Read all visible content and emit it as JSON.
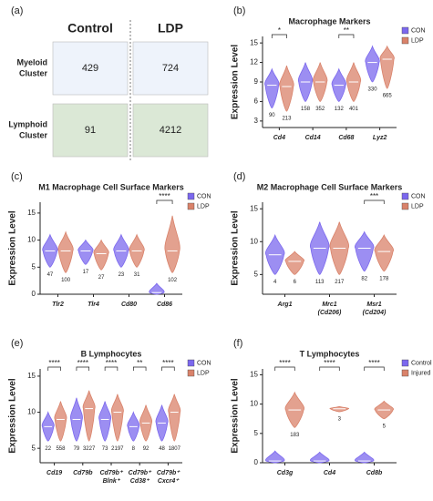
{
  "chart_data": [
    {
      "type": "matrix",
      "panel_label": "(a)",
      "columns": [
        "Control",
        "LDP"
      ],
      "rows": [
        [
          "Myeloid",
          "Cluster"
        ],
        [
          "Lymphoid",
          "Cluster"
        ]
      ],
      "row_colors": [
        "#eef3fb",
        "#dbe8d6"
      ],
      "values": [
        [
          429,
          724
        ],
        [
          91,
          4212
        ]
      ]
    },
    {
      "type": "violin",
      "panel_label": "(b)",
      "title": "Macrophage Markers",
      "ylabel": "Expression Level",
      "categories": [
        [
          "Cd4"
        ],
        [
          "Cd14"
        ],
        [
          "Cd68"
        ],
        [
          "Lyz2"
        ]
      ],
      "ylim": [
        2,
        16
      ],
      "yticks": [
        3,
        6,
        9,
        12,
        15
      ],
      "significance": [
        "*",
        null,
        "**",
        null
      ],
      "series": [
        {
          "name": "CON",
          "color": "#7b68ee",
          "values": [
            8.5,
            9,
            8.5,
            12
          ],
          "mins": [
            5,
            6,
            6,
            9
          ],
          "maxs": [
            11,
            12,
            11,
            14.5
          ],
          "counts": [
            90,
            158,
            132,
            330
          ]
        },
        {
          "name": "LDP",
          "color": "#d9826a",
          "values": [
            8.3,
            9,
            9,
            12.5
          ],
          "mins": [
            4.5,
            6,
            6,
            8
          ],
          "maxs": [
            11.5,
            12,
            12,
            14.5
          ],
          "counts": [
            213,
            352,
            401,
            665
          ]
        }
      ]
    },
    {
      "type": "violin",
      "panel_label": "(c)",
      "title": "M1 Macrophage Cell Surface Markers",
      "ylabel": "Expression Level",
      "categories": [
        [
          "Tlr2"
        ],
        [
          "Tlr4"
        ],
        [
          "Cd80"
        ],
        [
          "Cd86"
        ]
      ],
      "ylim": [
        0,
        17
      ],
      "yticks": [
        0,
        5,
        10,
        15
      ],
      "significance": [
        null,
        null,
        null,
        "****"
      ],
      "series": [
        {
          "name": "CON",
          "color": "#7b68ee",
          "values": [
            8,
            8,
            8,
            0.3
          ],
          "mins": [
            5,
            5.5,
            5,
            0
          ],
          "maxs": [
            11,
            10,
            11,
            2
          ]
        },
        {
          "name": "LDP",
          "color": "#d9826a",
          "values": [
            8,
            7.5,
            8,
            8
          ],
          "mins": [
            4,
            4.5,
            5,
            4
          ],
          "maxs": [
            11.5,
            10,
            11,
            14.5
          ]
        }
      ],
      "count_series": [
        [
          47,
          17,
          23,
          null
        ],
        [
          100,
          27,
          31,
          102
        ]
      ]
    },
    {
      "type": "violin",
      "panel_label": "(d)",
      "title": "M2 Macrophage Cell Surface Markers",
      "ylabel": "Expression Level",
      "categories": [
        [
          "Arg1"
        ],
        [
          "Mrc1",
          "(Cd206)"
        ],
        [
          "Msr1",
          "(Cd204)"
        ]
      ],
      "ylim": [
        2,
        16
      ],
      "yticks": [
        5,
        10,
        15
      ],
      "significance": [
        null,
        null,
        "***"
      ],
      "series": [
        {
          "name": "CON",
          "color": "#7b68ee",
          "values": [
            8,
            9,
            9
          ],
          "mins": [
            5,
            5,
            5.5
          ],
          "maxs": [
            11,
            13,
            11.5
          ]
        },
        {
          "name": "LDP",
          "color": "#d9826a",
          "values": [
            7,
            9,
            8.5
          ],
          "mins": [
            5,
            5,
            5.5
          ],
          "maxs": [
            8.5,
            13,
            11
          ]
        }
      ],
      "count_series": [
        [
          4,
          113,
          82
        ],
        [
          6,
          217,
          178
        ]
      ]
    },
    {
      "type": "violin",
      "panel_label": "(e)",
      "title": "B Lymphocytes",
      "ylabel": "Expression Level",
      "categories": [
        [
          "Cd19"
        ],
        [
          "Cd79b"
        ],
        [
          "Cd79b⁺",
          "Blnk⁺"
        ],
        [
          "Cd79b⁺",
          "Cd38⁺"
        ],
        [
          "Cd79b⁺",
          "Cxcr4⁺"
        ]
      ],
      "ylim": [
        3,
        16
      ],
      "yticks": [
        5,
        10,
        15
      ],
      "significance": [
        "****",
        "****",
        "****",
        "**",
        "****"
      ],
      "series": [
        {
          "name": "CON",
          "color": "#7b68ee",
          "values": [
            8,
            9,
            9,
            8,
            8.5
          ],
          "mins": [
            6,
            6,
            6,
            6,
            6
          ],
          "maxs": [
            10,
            12,
            11.5,
            10,
            11
          ]
        },
        {
          "name": "LDP",
          "color": "#d9826a",
          "values": [
            9,
            10.5,
            10,
            8.5,
            10
          ],
          "mins": [
            6,
            6,
            6,
            6,
            6
          ],
          "maxs": [
            11.5,
            13,
            12.5,
            11,
            12.5
          ]
        }
      ],
      "count_series": [
        [
          22,
          79,
          73,
          8,
          48
        ],
        [
          558,
          3227,
          2197,
          92,
          1807
        ]
      ]
    },
    {
      "type": "violin",
      "panel_label": "(f)",
      "title": "T Lymphocytes",
      "ylabel": "Expression Level",
      "categories": [
        [
          "Cd3g"
        ],
        [
          "Cd4"
        ],
        [
          "Cd8b"
        ]
      ],
      "ylim": [
        0,
        16
      ],
      "yticks": [
        0,
        5,
        10,
        15
      ],
      "significance": [
        "****",
        "****",
        "****"
      ],
      "series": [
        {
          "name": "Control",
          "color": "#7b68ee",
          "values": [
            0.3,
            0.3,
            0.3
          ],
          "mins": [
            0,
            0,
            0
          ],
          "maxs": [
            2,
            1.8,
            1.8
          ]
        },
        {
          "name": "Injured",
          "color": "#d9826a",
          "values": [
            9,
            9.2,
            9
          ],
          "mins": [
            6,
            8.7,
            7.5
          ],
          "maxs": [
            12,
            9.6,
            10.5
          ]
        }
      ],
      "count_series": [
        [
          null,
          null,
          null
        ],
        [
          183,
          3,
          5
        ]
      ]
    }
  ]
}
